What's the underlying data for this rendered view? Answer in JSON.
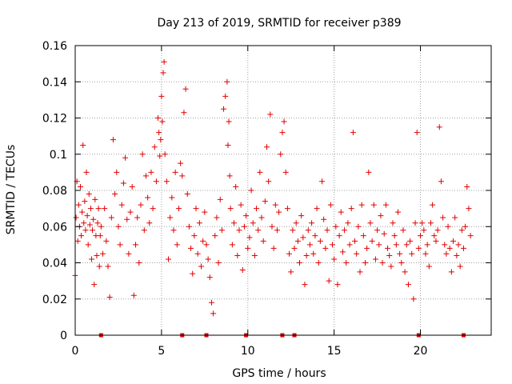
{
  "colors": {
    "series": "#e00000",
    "grid": "#a0a0a0",
    "axis": "#000000",
    "background": "#ffffff"
  },
  "chart_data": {
    "type": "scatter",
    "title": "Day 213 of 2019, SRMTID for receiver p389",
    "xlabel": "GPS time / hours",
    "ylabel": "SRMTID / TECUs",
    "xlim": [
      0,
      24.1
    ],
    "ylim": [
      0,
      0.16
    ],
    "grid": true,
    "marker": "+",
    "xticks": [
      0,
      5,
      10,
      15,
      20
    ],
    "yticks": [
      0,
      0.02,
      0.04,
      0.06,
      0.08,
      0.1,
      0.12,
      0.14,
      0.16
    ],
    "xtick_labels": [
      "0",
      "5",
      "10",
      "15",
      "20"
    ],
    "ytick_labels": [
      "0",
      "0.02",
      "0.04",
      "0.06",
      "0.08",
      "0.1",
      "0.12",
      "0.14",
      "0.16"
    ],
    "zero_markers_x": [
      1.5,
      6.2,
      7.6,
      9.9,
      12.0,
      12.7,
      19.9,
      22.5
    ],
    "series": [
      {
        "name": "SRMTID",
        "x": [
          0.0,
          0.05,
          0.1,
          0.15,
          0.2,
          0.25,
          0.3,
          0.35,
          0.4,
          0.45,
          0.5,
          0.55,
          0.6,
          0.65,
          0.7,
          0.75,
          0.8,
          0.85,
          0.9,
          0.95,
          1.0,
          1.05,
          1.1,
          1.15,
          1.2,
          1.25,
          1.3,
          1.35,
          1.4,
          1.45,
          1.5,
          1.6,
          1.7,
          1.8,
          1.9,
          2.0,
          2.1,
          2.2,
          2.3,
          2.4,
          2.5,
          2.6,
          2.7,
          2.8,
          2.9,
          3.0,
          3.1,
          3.2,
          3.3,
          3.4,
          3.5,
          3.6,
          3.7,
          3.8,
          3.9,
          4.0,
          4.1,
          4.2,
          4.3,
          4.4,
          4.5,
          4.6,
          4.7,
          4.8,
          4.85,
          4.9,
          4.95,
          5.0,
          5.05,
          5.1,
          5.15,
          5.2,
          5.3,
          5.4,
          5.5,
          5.6,
          5.7,
          5.8,
          5.9,
          6.0,
          6.1,
          6.2,
          6.3,
          6.4,
          6.5,
          6.6,
          6.7,
          6.8,
          6.9,
          7.0,
          7.1,
          7.2,
          7.3,
          7.4,
          7.5,
          7.6,
          7.7,
          7.8,
          7.9,
          8.0,
          8.1,
          8.2,
          8.3,
          8.4,
          8.5,
          8.6,
          8.7,
          8.8,
          8.85,
          8.9,
          8.95,
          9.0,
          9.1,
          9.2,
          9.3,
          9.4,
          9.5,
          9.6,
          9.7,
          9.8,
          9.9,
          10.0,
          10.1,
          10.2,
          10.3,
          10.4,
          10.5,
          10.6,
          10.7,
          10.8,
          10.9,
          11.0,
          11.1,
          11.2,
          11.3,
          11.4,
          11.5,
          11.6,
          11.7,
          11.8,
          11.9,
          12.0,
          12.1,
          12.2,
          12.3,
          12.4,
          12.5,
          12.6,
          12.7,
          12.8,
          12.9,
          13.0,
          13.1,
          13.2,
          13.3,
          13.4,
          13.5,
          13.6,
          13.7,
          13.8,
          13.9,
          14.0,
          14.1,
          14.2,
          14.3,
          14.4,
          14.5,
          14.6,
          14.7,
          14.8,
          14.9,
          15.0,
          15.1,
          15.2,
          15.3,
          15.4,
          15.5,
          15.6,
          15.7,
          15.8,
          15.9,
          16.0,
          16.1,
          16.2,
          16.3,
          16.4,
          16.5,
          16.6,
          16.7,
          16.8,
          16.9,
          17.0,
          17.1,
          17.2,
          17.3,
          17.4,
          17.5,
          17.6,
          17.7,
          17.8,
          17.9,
          18.0,
          18.1,
          18.2,
          18.3,
          18.4,
          18.5,
          18.6,
          18.7,
          18.8,
          18.9,
          19.0,
          19.1,
          19.2,
          19.3,
          19.4,
          19.5,
          19.6,
          19.7,
          19.8,
          19.9,
          20.0,
          20.1,
          20.2,
          20.3,
          20.4,
          20.5,
          20.6,
          20.7,
          20.8,
          20.9,
          21.0,
          21.1,
          21.2,
          21.3,
          21.4,
          21.5,
          21.6,
          21.7,
          21.8,
          21.9,
          22.0,
          22.1,
          22.2,
          22.3,
          22.4,
          22.5,
          22.6,
          22.7,
          22.8,
          22.9
        ],
        "y": [
          0.033,
          0.065,
          0.085,
          0.052,
          0.072,
          0.06,
          0.082,
          0.055,
          0.068,
          0.105,
          0.062,
          0.074,
          0.058,
          0.09,
          0.066,
          0.05,
          0.078,
          0.061,
          0.07,
          0.042,
          0.058,
          0.064,
          0.028,
          0.075,
          0.055,
          0.044,
          0.062,
          0.07,
          0.038,
          0.055,
          0.06,
          0.045,
          0.07,
          0.052,
          0.038,
          0.021,
          0.065,
          0.108,
          0.078,
          0.09,
          0.06,
          0.05,
          0.072,
          0.084,
          0.098,
          0.064,
          0.045,
          0.068,
          0.082,
          0.022,
          0.05,
          0.065,
          0.04,
          0.072,
          0.1,
          0.058,
          0.088,
          0.076,
          0.062,
          0.09,
          0.07,
          0.104,
          0.085,
          0.12,
          0.112,
          0.099,
          0.108,
          0.132,
          0.118,
          0.145,
          0.151,
          0.1,
          0.085,
          0.042,
          0.065,
          0.076,
          0.058,
          0.09,
          0.05,
          0.07,
          0.095,
          0.088,
          0.123,
          0.136,
          0.078,
          0.06,
          0.048,
          0.034,
          0.055,
          0.07,
          0.045,
          0.062,
          0.038,
          0.052,
          0.068,
          0.05,
          0.042,
          0.032,
          0.018,
          0.012,
          0.055,
          0.065,
          0.04,
          0.075,
          0.058,
          0.125,
          0.132,
          0.14,
          0.105,
          0.118,
          0.088,
          0.07,
          0.05,
          0.062,
          0.082,
          0.044,
          0.058,
          0.072,
          0.036,
          0.06,
          0.066,
          0.048,
          0.054,
          0.08,
          0.062,
          0.044,
          0.07,
          0.058,
          0.09,
          0.065,
          0.052,
          0.074,
          0.104,
          0.085,
          0.122,
          0.06,
          0.048,
          0.072,
          0.058,
          0.068,
          0.1,
          0.112,
          0.118,
          0.09,
          0.07,
          0.045,
          0.035,
          0.058,
          0.048,
          0.062,
          0.052,
          0.04,
          0.066,
          0.054,
          0.028,
          0.044,
          0.058,
          0.05,
          0.062,
          0.045,
          0.055,
          0.07,
          0.04,
          0.052,
          0.085,
          0.064,
          0.048,
          0.058,
          0.03,
          0.072,
          0.05,
          0.042,
          0.06,
          0.028,
          0.055,
          0.068,
          0.046,
          0.058,
          0.04,
          0.062,
          0.05,
          0.07,
          0.112,
          0.052,
          0.045,
          0.06,
          0.035,
          0.072,
          0.055,
          0.04,
          0.048,
          0.09,
          0.062,
          0.052,
          0.072,
          0.042,
          0.058,
          0.05,
          0.066,
          0.04,
          0.056,
          0.072,
          0.048,
          0.044,
          0.038,
          0.062,
          0.055,
          0.05,
          0.068,
          0.045,
          0.04,
          0.058,
          0.035,
          0.05,
          0.028,
          0.052,
          0.045,
          0.02,
          0.062,
          0.112,
          0.048,
          0.055,
          0.062,
          0.058,
          0.045,
          0.05,
          0.038,
          0.062,
          0.072,
          0.055,
          0.052,
          0.058,
          0.115,
          0.085,
          0.065,
          0.05,
          0.045,
          0.06,
          0.048,
          0.035,
          0.052,
          0.065,
          0.044,
          0.05,
          0.038,
          0.058,
          0.048,
          0.06,
          0.082,
          0.07,
          0.055
        ]
      }
    ]
  }
}
